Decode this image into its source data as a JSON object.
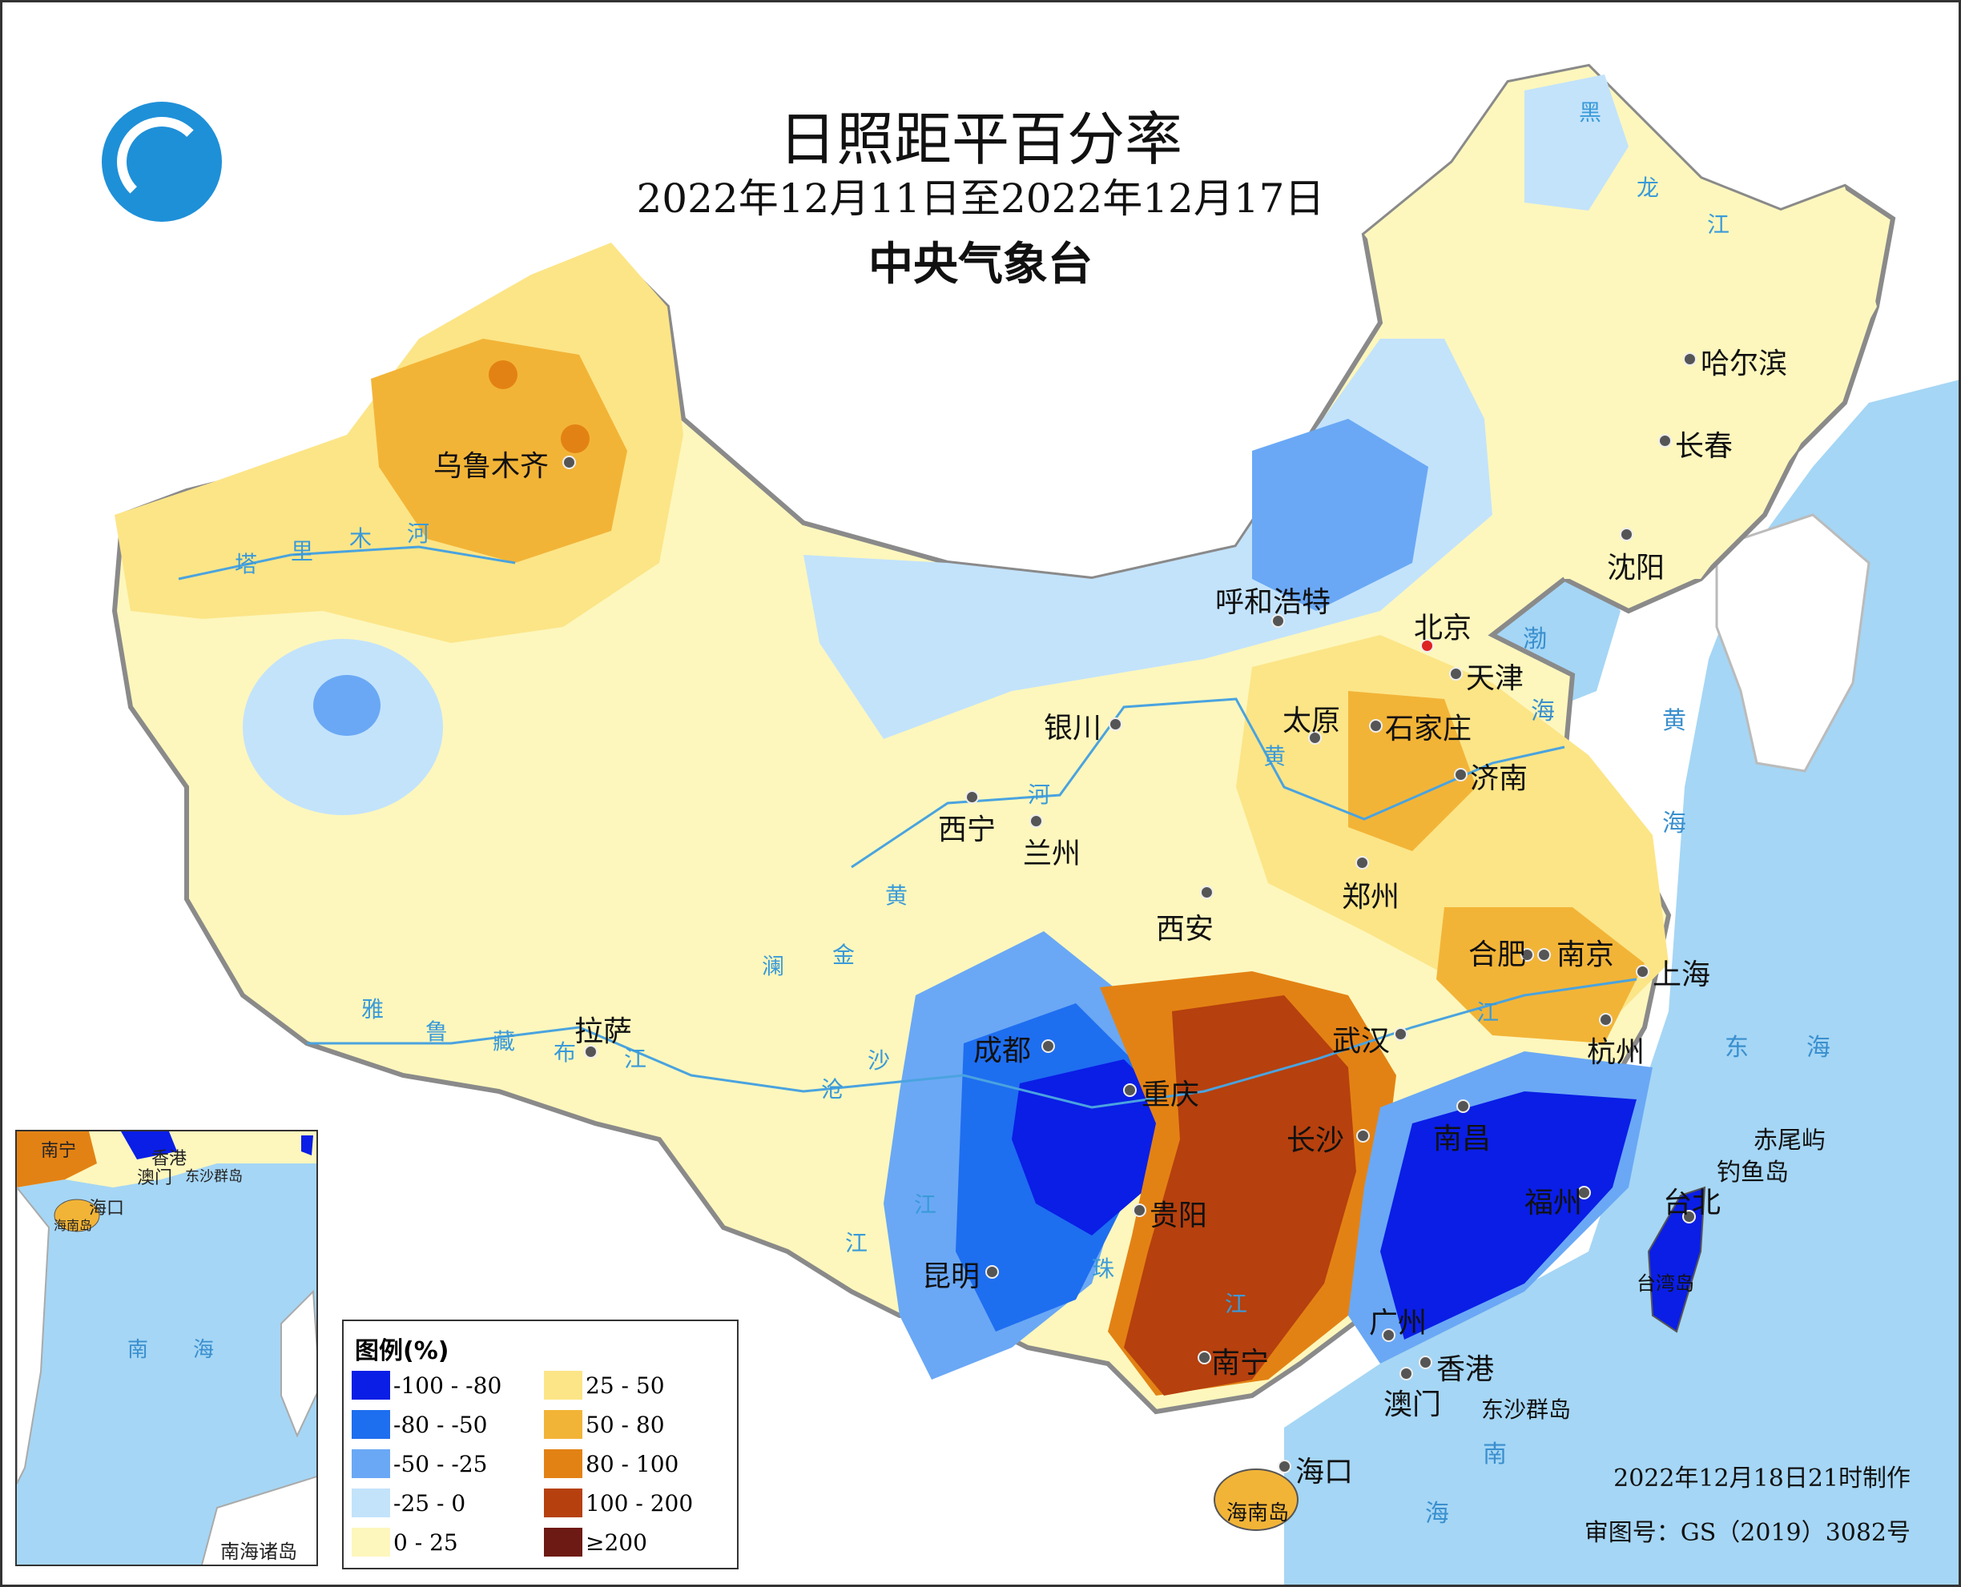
{
  "title": {
    "main": "日照距平百分率",
    "period": "2022年12月11日至2022年12月17日",
    "issuer": "中央气象台"
  },
  "logo": {
    "icon": "cma-logo-icon"
  },
  "cities": [
    {
      "name": "乌鲁木齐"
    },
    {
      "name": "呼和浩特"
    },
    {
      "name": "北京"
    },
    {
      "name": "天津"
    },
    {
      "name": "哈尔滨"
    },
    {
      "name": "长春"
    },
    {
      "name": "沈阳"
    },
    {
      "name": "太原"
    },
    {
      "name": "石家庄"
    },
    {
      "name": "济南"
    },
    {
      "name": "银川"
    },
    {
      "name": "西宁"
    },
    {
      "name": "兰州"
    },
    {
      "name": "郑州"
    },
    {
      "name": "西安"
    },
    {
      "name": "合肥"
    },
    {
      "name": "南京"
    },
    {
      "name": "上海"
    },
    {
      "name": "拉萨"
    },
    {
      "name": "成都"
    },
    {
      "name": "武汉"
    },
    {
      "name": "杭州"
    },
    {
      "name": "重庆"
    },
    {
      "name": "长沙"
    },
    {
      "name": "南昌"
    },
    {
      "name": "福州"
    },
    {
      "name": "台北"
    },
    {
      "name": "贵阳"
    },
    {
      "name": "昆明"
    },
    {
      "name": "广州"
    },
    {
      "name": "香港"
    },
    {
      "name": "澳门"
    },
    {
      "name": "南宁"
    },
    {
      "name": "海口"
    }
  ],
  "water_labels": [
    "塔",
    "里",
    "木",
    "河",
    "雅",
    "鲁",
    "藏",
    "布",
    "江",
    "黄",
    "河",
    "黄",
    "澜",
    "金",
    "沧",
    "沙",
    "江",
    "江",
    "江",
    "珠",
    "江",
    "黑",
    "龙",
    "江",
    "渤",
    "海",
    "黄",
    "海",
    "东",
    "海",
    "南",
    "海"
  ],
  "islands": [
    "赤尾屿",
    "钓鱼岛",
    "台湾岛",
    "东沙群岛",
    "海南岛"
  ],
  "inset": {
    "title": "南海诸岛",
    "labels": [
      "南宁",
      "香港",
      "澳门",
      "东沙群岛",
      "海口",
      "海南岛",
      "南",
      "海"
    ]
  },
  "legend": {
    "title": "图例(%)",
    "items": [
      {
        "label": "-100 - -80",
        "color": "#0a1ee6"
      },
      {
        "label": "-80 - -50",
        "color": "#1e6ef0"
      },
      {
        "label": "-50 - -25",
        "color": "#6aa8f5"
      },
      {
        "label": "-25 - 0",
        "color": "#c3e3fb"
      },
      {
        "label": "0 - 25",
        "color": "#fdf7bd"
      },
      {
        "label": "25 - 50",
        "color": "#fce587"
      },
      {
        "label": "50 - 80",
        "color": "#f2b437"
      },
      {
        "label": "80 - 100",
        "color": "#e38214"
      },
      {
        "label": "100 - 200",
        "color": "#b6400e"
      },
      {
        "label": "≥200",
        "color": "#6e1a14"
      }
    ]
  },
  "footer": {
    "made": "2022年12月18日21时制作",
    "approval": "审图号：GS（2019）3082号"
  }
}
